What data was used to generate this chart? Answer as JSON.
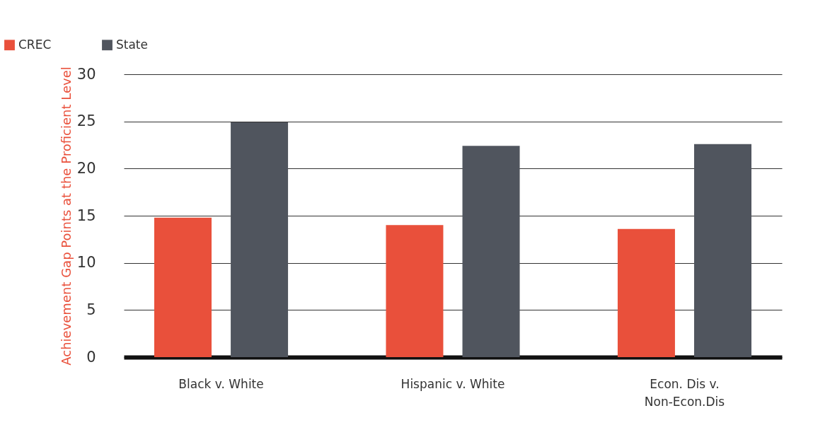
{
  "chart_data": {
    "type": "bar",
    "ylabel": "Achievement Gap Points at the Proficient Level",
    "categories": [
      "Black v. White",
      "Hispanic v. White",
      "Econ. Dis v.\nNon-Econ.Dis"
    ],
    "series": [
      {
        "name": "CREC",
        "color": "#e9503b",
        "values": [
          14.8,
          14.0,
          13.6
        ]
      },
      {
        "name": "State",
        "color": "#50555e",
        "values": [
          24.9,
          22.4,
          22.6
        ]
      }
    ],
    "ylim": [
      0,
      30
    ],
    "yticks": [
      0,
      5,
      10,
      15,
      20,
      25,
      30
    ],
    "grid": "y",
    "legend": "top left"
  }
}
